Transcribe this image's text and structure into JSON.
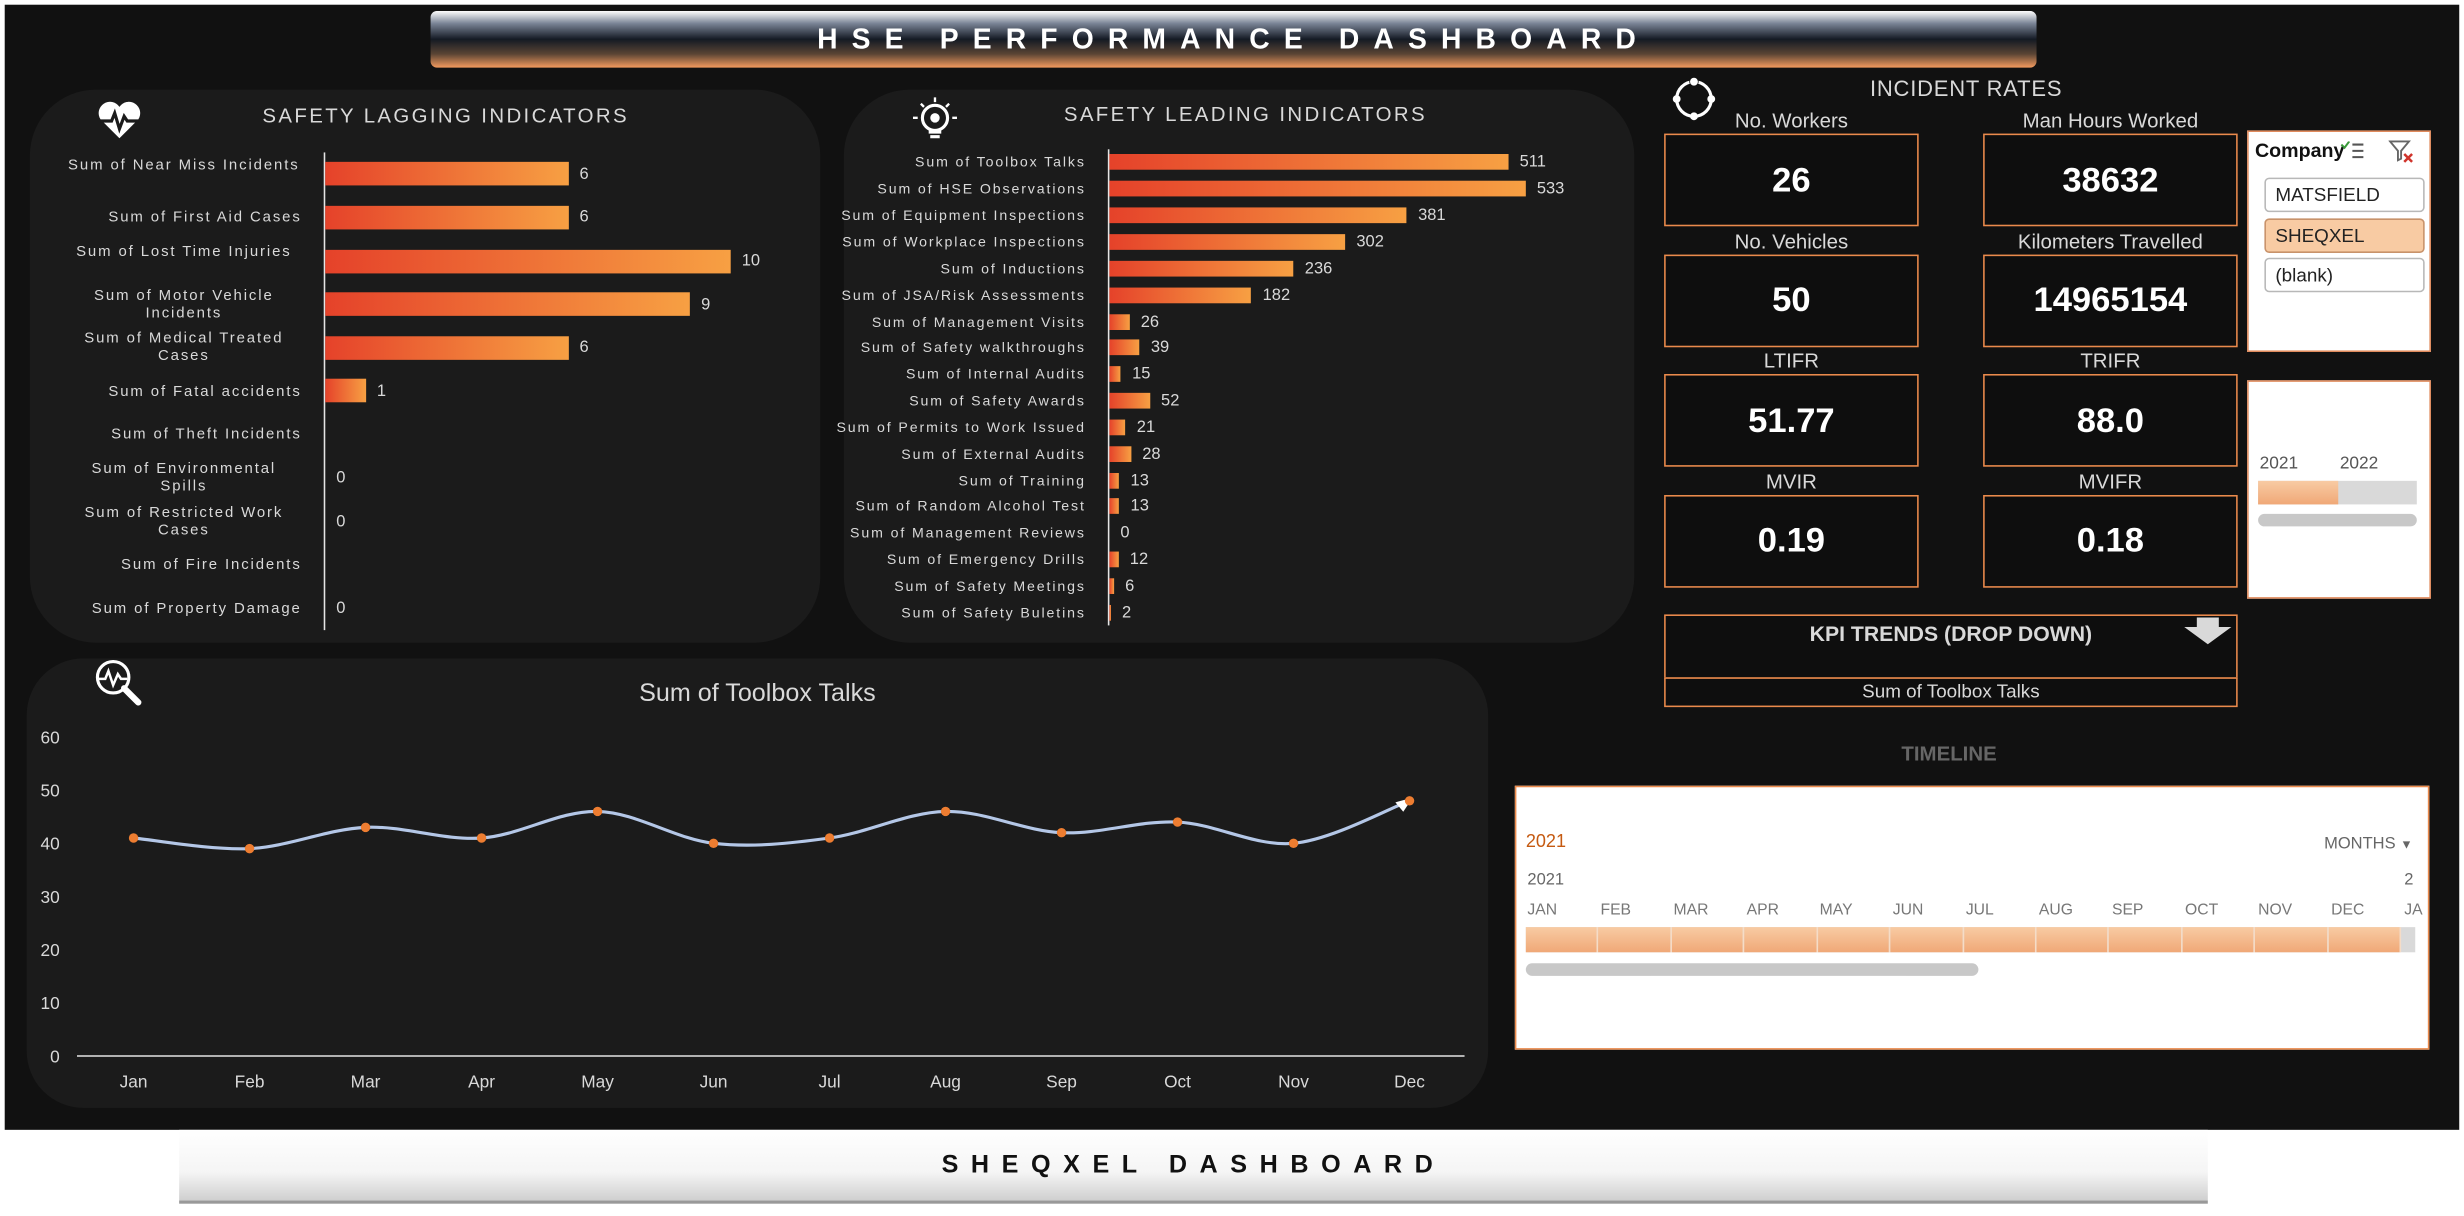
{
  "header": {
    "title": "HSE PERFORMANCE DASHBOARD"
  },
  "footer": {
    "title": "SHEQXEL DASHBOARD"
  },
  "lagging": {
    "title": "SAFETY LAGGING INDICATORS",
    "icon": "heartbeat-icon",
    "items": [
      {
        "label": "Sum of Near Miss Incidents",
        "value": "6",
        "n": 6
      },
      {
        "label": "Sum of First Aid Cases",
        "value": "6",
        "n": 6
      },
      {
        "label": "Sum of Lost Time Injuries",
        "value": "10",
        "n": 10
      },
      {
        "label": "Sum of Motor Vehicle Incidents",
        "value": "9",
        "n": 9
      },
      {
        "label": "Sum of Medical Treated Cases",
        "value": "6",
        "n": 6
      },
      {
        "label": "Sum of Fatal accidents",
        "value": "1",
        "n": 1
      },
      {
        "label": "Sum of Theft Incidents",
        "value": "",
        "n": 0
      },
      {
        "label": "Sum of Environmental Spills",
        "value": "0",
        "n": 0
      },
      {
        "label": "Sum of Restricted Work Cases",
        "value": "0",
        "n": 0
      },
      {
        "label": "Sum of Fire Incidents",
        "value": "",
        "n": 0
      },
      {
        "label": "Sum of Property Damage",
        "value": "0",
        "n": 0
      }
    ]
  },
  "leading": {
    "title": "SAFETY LEADING INDICATORS",
    "icon": "lightbulb-gear-icon",
    "items": [
      {
        "label": "Sum of Toolbox Talks",
        "value": "511",
        "n": 511
      },
      {
        "label": "Sum of HSE Observations",
        "value": "533",
        "n": 533
      },
      {
        "label": "Sum of Equipment Inspections",
        "value": "381",
        "n": 381
      },
      {
        "label": "Sum of Workplace Inspections",
        "value": "302",
        "n": 302
      },
      {
        "label": "Sum of Inductions",
        "value": "236",
        "n": 236
      },
      {
        "label": "Sum of JSA/Risk Assessments",
        "value": "182",
        "n": 182
      },
      {
        "label": "Sum of Management Visits",
        "value": "26",
        "n": 26
      },
      {
        "label": "Sum of Safety walkthroughs",
        "value": "39",
        "n": 39
      },
      {
        "label": "Sum of Internal Audits",
        "value": "15",
        "n": 15
      },
      {
        "label": "Sum of Safety Awards",
        "value": "52",
        "n": 52
      },
      {
        "label": "Sum of Permits to Work Issued",
        "value": "21",
        "n": 21
      },
      {
        "label": "Sum of External Audits",
        "value": "28",
        "n": 28
      },
      {
        "label": "Sum of Training",
        "value": "13",
        "n": 13
      },
      {
        "label": "Sum of Random Alcohol Test",
        "value": "13",
        "n": 13
      },
      {
        "label": "Sum of Management Reviews",
        "value": "0",
        "n": 0
      },
      {
        "label": "Sum of Emergency Drills",
        "value": "12",
        "n": 12
      },
      {
        "label": "Sum of Safety Meetings",
        "value": "6",
        "n": 6
      },
      {
        "label": "Sum of Safety Buletins",
        "value": "2",
        "n": 2
      }
    ]
  },
  "incident_rates": {
    "title": "INCIDENT RATES",
    "icon": "cycle-icon",
    "kpis": [
      {
        "label": "No. Workers",
        "value": "26"
      },
      {
        "label": "Man Hours Worked",
        "value": "38632"
      },
      {
        "label": "No. Vehicles",
        "value": "50"
      },
      {
        "label": "Kilometers Travelled",
        "value": "14965154"
      },
      {
        "label": "LTIFR",
        "value": "51.77"
      },
      {
        "label": "TRIFR",
        "value": "88.0"
      },
      {
        "label": "MVIR",
        "value": "0.19"
      },
      {
        "label": "MVIFR",
        "value": "0.18"
      }
    ]
  },
  "kpi_trends": {
    "title": "KPI TRENDS (DROP DOWN)",
    "selected": "Sum of Toolbox Talks"
  },
  "company_slicer": {
    "title": "Company",
    "items": [
      "MATSFIELD",
      "SHEQXEL",
      "(blank)"
    ],
    "selected": "SHEQXEL"
  },
  "year_slicer": {
    "items": [
      "2021",
      "2022"
    ],
    "selected": "2021"
  },
  "timeline": {
    "title": "TIMELINE",
    "period": "2021",
    "level": "MONTHS",
    "year_label": "2021",
    "next_year_label": "2",
    "months": [
      "JAN",
      "FEB",
      "MAR",
      "APR",
      "MAY",
      "JUN",
      "JUL",
      "AUG",
      "SEP",
      "OCT",
      "NOV",
      "DEC",
      "JA"
    ]
  },
  "chart_data": {
    "type": "line",
    "title": "Sum of Toolbox Talks",
    "categories": [
      "Jan",
      "Feb",
      "Mar",
      "Apr",
      "May",
      "Jun",
      "Jul",
      "Aug",
      "Sep",
      "Oct",
      "Nov",
      "Dec"
    ],
    "values": [
      41,
      39,
      43,
      41,
      46,
      40,
      41,
      46,
      42,
      44,
      40,
      48
    ],
    "ylim": [
      0,
      60
    ],
    "yticks": [
      "60",
      "50",
      "40",
      "30",
      "20",
      "10",
      "0"
    ],
    "line_color": "#b4c7e7",
    "marker_color": "#ed7d31",
    "grid": false,
    "icon": "trend-magnifier-icon"
  },
  "colors": {
    "accent": "#ed7d31",
    "bar_start": "#e5422a",
    "bar_end": "#f7a043",
    "background": "#111111"
  }
}
